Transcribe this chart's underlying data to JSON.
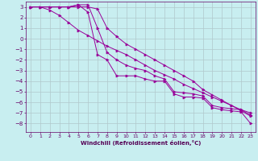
{
  "xlabel": "Windchill (Refroidissement éolien,°C)",
  "background_color": "#c8eef0",
  "grid_color": "#b0c8cc",
  "line_color": "#990099",
  "xlim": [
    -0.5,
    23.5
  ],
  "ylim": [
    -8.8,
    3.5
  ],
  "xticks": [
    0,
    1,
    2,
    3,
    4,
    5,
    6,
    7,
    8,
    9,
    10,
    11,
    12,
    13,
    14,
    15,
    16,
    17,
    18,
    19,
    20,
    21,
    22,
    23
  ],
  "yticks": [
    -8,
    -7,
    -6,
    -5,
    -4,
    -3,
    -2,
    -1,
    0,
    1,
    2,
    3
  ],
  "series": [
    [
      3.0,
      3.0,
      2.7,
      2.2,
      1.5,
      0.8,
      0.3,
      -0.2,
      -0.7,
      -1.1,
      -1.5,
      -2.0,
      -2.5,
      -3.0,
      -3.4,
      -3.8,
      -4.3,
      -4.7,
      -5.1,
      -5.5,
      -5.9,
      -6.3,
      -6.7,
      -7.2
    ],
    [
      3.0,
      3.0,
      3.0,
      3.0,
      3.0,
      3.0,
      3.0,
      2.8,
      1.0,
      0.2,
      -0.5,
      -1.0,
      -1.5,
      -2.0,
      -2.5,
      -3.0,
      -3.5,
      -4.0,
      -4.8,
      -5.3,
      -5.8,
      -6.3,
      -6.8,
      -7.3
    ],
    [
      3.0,
      3.0,
      3.0,
      3.0,
      3.0,
      3.2,
      3.2,
      1.0,
      -1.3,
      -2.0,
      -2.5,
      -2.8,
      -3.0,
      -3.5,
      -3.8,
      -5.0,
      -5.1,
      -5.2,
      -5.4,
      -6.3,
      -6.5,
      -6.6,
      -6.7,
      -7.0
    ],
    [
      3.0,
      3.0,
      3.0,
      3.0,
      3.0,
      3.2,
      2.5,
      -1.5,
      -2.0,
      -3.5,
      -3.5,
      -3.5,
      -3.8,
      -4.0,
      -4.0,
      -5.2,
      -5.5,
      -5.5,
      -5.6,
      -6.5,
      -6.7,
      -6.8,
      -6.9,
      -8.0
    ]
  ]
}
